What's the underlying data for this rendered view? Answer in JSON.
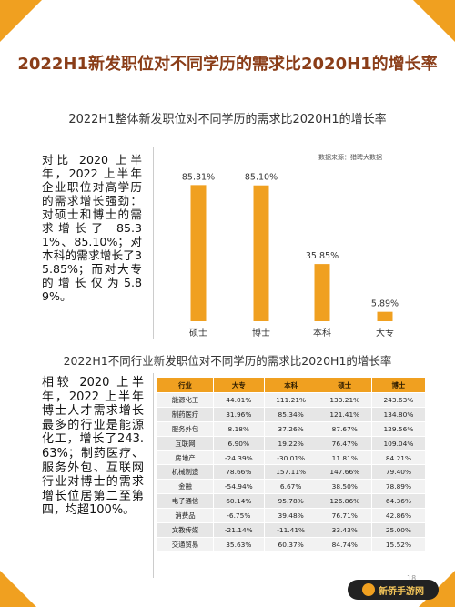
{
  "main_title": "2022H1新发职位对不同学历的需求比2020H1的增长率",
  "chart_data": [
    {
      "type": "bar",
      "title": "2022H1整体新发职位对不同学历的需求比2020H1的增长率",
      "source": "数据来源：猎聘大数据",
      "categories": [
        "硕士",
        "博士",
        "本科",
        "大专"
      ],
      "values": [
        85.31,
        85.1,
        35.85,
        5.89
      ],
      "value_labels": [
        "85.31%",
        "85.10%",
        "35.85%",
        "5.89%"
      ],
      "ylim": [
        0,
        100
      ],
      "grid": false,
      "color": "#f0a020"
    },
    {
      "type": "table",
      "title": "2022H1不同行业新发职位对不同学历的需求比2020H1的增长率",
      "columns": [
        "行业",
        "大专",
        "本科",
        "硕士",
        "博士"
      ],
      "rows": [
        [
          "能源化工",
          "44.01%",
          "111.21%",
          "133.21%",
          "243.63%"
        ],
        [
          "制药医疗",
          "31.96%",
          "85.34%",
          "121.41%",
          "134.80%"
        ],
        [
          "服务外包",
          "8.18%",
          "37.26%",
          "87.67%",
          "129.56%"
        ],
        [
          "互联网",
          "6.90%",
          "19.22%",
          "76.47%",
          "109.04%"
        ],
        [
          "房地产",
          "-24.39%",
          "-30.01%",
          "11.81%",
          "84.21%"
        ],
        [
          "机械制造",
          "78.66%",
          "157.11%",
          "147.66%",
          "79.40%"
        ],
        [
          "金融",
          "-54.94%",
          "6.67%",
          "38.50%",
          "78.89%"
        ],
        [
          "电子通信",
          "60.14%",
          "95.78%",
          "126.86%",
          "64.36%"
        ],
        [
          "消费品",
          "-6.75%",
          "39.48%",
          "76.71%",
          "42.86%"
        ],
        [
          "文教传媒",
          "-21.14%",
          "-11.41%",
          "33.43%",
          "25.00%"
        ],
        [
          "交通贸易",
          "35.63%",
          "60.37%",
          "84.74%",
          "15.52%"
        ]
      ]
    }
  ],
  "text_blocks": {
    "summary1": "对比 2020 上半年，2022 上半年企业职位对高学历的需求增长强劲：对硕士和博士的需求增长了 85.31%、85.10%；对本科的需求增长了35.85%；而对大专的增长仅为5.89%。",
    "summary2": "相较 2020 上半年，2022 上半年博士人才需求增长最多的行业是能源化工，增长了243.63%；制药医疗、服务外包、互联网行业对博士的需求增长位居第二至第四，均超100%。"
  },
  "page_number": "18",
  "logo_text": "新侨手游网",
  "colors": {
    "accent": "#f0a020",
    "title": "#8a3d18"
  }
}
